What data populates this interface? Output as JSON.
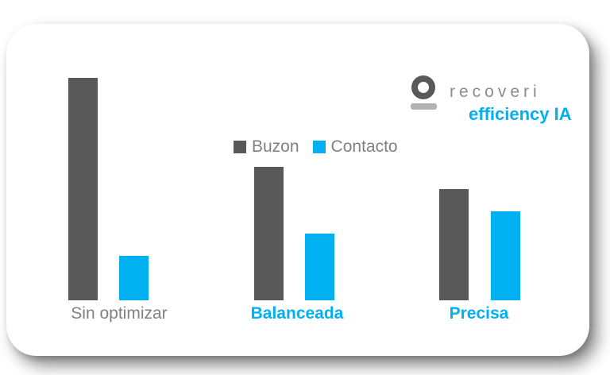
{
  "page": {
    "background": "#ffffff"
  },
  "card": {
    "background": "#ffffff",
    "shadow_color": "rgba(0,0,0,0.4)"
  },
  "logo": {
    "brand": "recoveri",
    "tagline": "efficiency IA",
    "ring_color": "#595959",
    "base_color": "#b3b3b3",
    "brand_color": "#8c8c8c",
    "tagline_color": "#00b0f0"
  },
  "legend": {
    "text_color": "#808080",
    "items": [
      {
        "label": "Buzon",
        "color": "#595959"
      },
      {
        "label": "Contacto",
        "color": "#00b0f0"
      }
    ]
  },
  "chart_data": {
    "type": "bar",
    "title": "",
    "categories": [
      "Sin optimizar",
      "Balanceada",
      "Precisa"
    ],
    "series": [
      {
        "name": "Buzon",
        "color": "#595959",
        "values": [
          100,
          60,
          50
        ]
      },
      {
        "name": "Contacto",
        "color": "#00b0f0",
        "values": [
          20,
          30,
          40
        ]
      }
    ],
    "ylim": [
      0,
      100
    ],
    "grid": false,
    "axes_hidden": true,
    "legend_position": "top-center",
    "category_label_colors": [
      "#808080",
      "#00b0f0",
      "#00b0f0"
    ],
    "category_label_bold": [
      false,
      true,
      true
    ]
  }
}
